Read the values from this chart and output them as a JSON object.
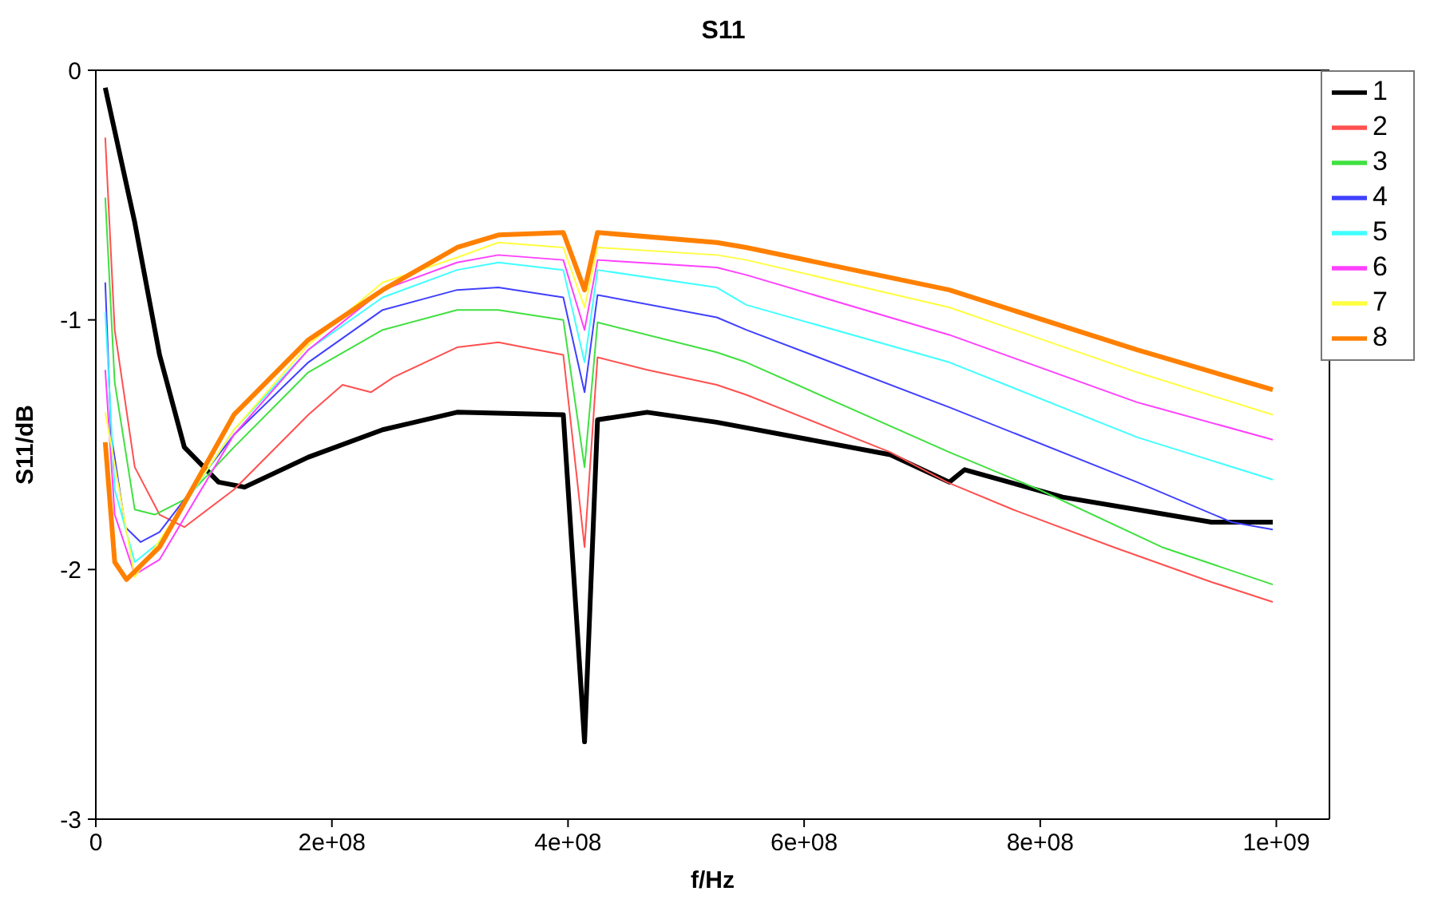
{
  "chart_data": {
    "type": "line",
    "title": "S11",
    "xlabel": "f/Hz",
    "ylabel": "S11/dB",
    "xlim": [
      0,
      1045000000
    ],
    "ylim": [
      -3,
      0
    ],
    "xticks": [
      0,
      {
        "value": 200000000,
        "label": "2e+08"
      },
      {
        "value": 400000000,
        "label": "4e+08"
      },
      {
        "value": 600000000,
        "label": "6e+08"
      },
      {
        "value": 800000000,
        "label": "8e+08"
      },
      {
        "value": 1000000000,
        "label": "1e+09"
      }
    ],
    "yticks": [
      -3,
      -2,
      -1,
      0
    ],
    "grid": false,
    "legend": "top right",
    "marker": "none",
    "line_style": "solid",
    "series": [
      {
        "name": "1",
        "color": "#000000",
        "x": [
          8000000,
          33000000,
          54000000,
          75000000,
          104000000,
          126000000,
          180000000,
          243000000,
          306000000,
          396000000,
          414000000,
          425000000,
          467000000,
          526000000,
          673000000,
          723000000,
          736000000,
          819000000,
          882000000,
          945000000,
          997000000
        ],
        "values": [
          -0.07,
          -0.61,
          -1.14,
          -1.51,
          -1.65,
          -1.67,
          -1.55,
          -1.44,
          -1.37,
          -1.38,
          -2.69,
          -1.4,
          -1.37,
          -1.41,
          -1.54,
          -1.65,
          -1.6,
          -1.71,
          -1.76,
          -1.81,
          -1.81
        ]
      },
      {
        "name": "2",
        "color": "#ff5050",
        "x": [
          8000000,
          16000000,
          33000000,
          54000000,
          75000000,
          117000000,
          180000000,
          209000000,
          233000000,
          252000000,
          306000000,
          341000000,
          396000000,
          414000000,
          425000000,
          467000000,
          526000000,
          551000000,
          673000000,
          721000000,
          777000000,
          862000000,
          945000000,
          997000000
        ],
        "values": [
          -0.27,
          -1.04,
          -1.59,
          -1.78,
          -1.83,
          -1.68,
          -1.38,
          -1.26,
          -1.29,
          -1.23,
          -1.11,
          -1.09,
          -1.14,
          -1.91,
          -1.15,
          -1.2,
          -1.26,
          -1.3,
          -1.53,
          -1.65,
          -1.76,
          -1.91,
          -2.05,
          -2.13
        ]
      },
      {
        "name": "3",
        "color": "#40e040",
        "x": [
          8000000,
          16000000,
          33000000,
          50000000,
          75000000,
          117000000,
          180000000,
          243000000,
          306000000,
          341000000,
          396000000,
          414000000,
          425000000,
          526000000,
          551000000,
          723000000,
          799000000,
          903000000,
          997000000
        ],
        "values": [
          -0.51,
          -1.25,
          -1.76,
          -1.78,
          -1.72,
          -1.51,
          -1.21,
          -1.04,
          -0.96,
          -0.96,
          -1.0,
          -1.59,
          -1.01,
          -1.13,
          -1.17,
          -1.53,
          -1.68,
          -1.91,
          -2.06
        ]
      },
      {
        "name": "4",
        "color": "#4040ff",
        "x": [
          8000000,
          13000000,
          25000000,
          38000000,
          54000000,
          117000000,
          180000000,
          243000000,
          306000000,
          341000000,
          396000000,
          414000000,
          425000000,
          526000000,
          551000000,
          723000000,
          882000000,
          962000000,
          997000000
        ],
        "values": [
          -0.85,
          -1.46,
          -1.83,
          -1.89,
          -1.85,
          -1.46,
          -1.17,
          -0.96,
          -0.88,
          -0.87,
          -0.91,
          -1.29,
          -0.9,
          -0.99,
          -1.04,
          -1.35,
          -1.65,
          -1.81,
          -1.84
        ]
      },
      {
        "name": "5",
        "color": "#40ffff",
        "x": [
          8000000,
          16000000,
          33000000,
          54000000,
          117000000,
          180000000,
          243000000,
          306000000,
          341000000,
          396000000,
          414000000,
          425000000,
          526000000,
          551000000,
          723000000,
          882000000,
          997000000
        ],
        "values": [
          -0.97,
          -1.68,
          -1.97,
          -1.89,
          -1.44,
          -1.12,
          -0.91,
          -0.8,
          -0.77,
          -0.8,
          -1.17,
          -0.8,
          -0.87,
          -0.94,
          -1.17,
          -1.47,
          -1.64
        ]
      },
      {
        "name": "6",
        "color": "#ff40ff",
        "x": [
          8000000,
          16000000,
          33000000,
          54000000,
          117000000,
          180000000,
          243000000,
          306000000,
          341000000,
          396000000,
          414000000,
          425000000,
          526000000,
          551000000,
          723000000,
          882000000,
          997000000
        ],
        "values": [
          -1.2,
          -1.78,
          -2.02,
          -1.96,
          -1.46,
          -1.12,
          -0.88,
          -0.77,
          -0.74,
          -0.76,
          -1.04,
          -0.76,
          -0.79,
          -0.82,
          -1.06,
          -1.33,
          -1.48
        ]
      },
      {
        "name": "7",
        "color": "#ffff40",
        "x": [
          8000000,
          33000000,
          117000000,
          180000000,
          243000000,
          306000000,
          341000000,
          396000000,
          414000000,
          425000000,
          526000000,
          551000000,
          723000000,
          882000000,
          997000000
        ],
        "values": [
          -1.37,
          -2.03,
          -1.44,
          -1.1,
          -0.85,
          -0.75,
          -0.69,
          -0.71,
          -0.95,
          -0.71,
          -0.74,
          -0.76,
          -0.95,
          -1.21,
          -1.38
        ]
      },
      {
        "name": "8",
        "color": "#ff8000",
        "x": [
          8000000,
          16000000,
          26000000,
          54000000,
          117000000,
          180000000,
          243000000,
          306000000,
          341000000,
          396000000,
          414000000,
          425000000,
          526000000,
          551000000,
          723000000,
          882000000,
          997000000
        ],
        "values": [
          -1.49,
          -1.97,
          -2.04,
          -1.91,
          -1.38,
          -1.08,
          -0.88,
          -0.71,
          -0.66,
          -0.65,
          -0.88,
          -0.65,
          -0.69,
          -0.71,
          -0.88,
          -1.12,
          -1.28
        ]
      }
    ]
  }
}
